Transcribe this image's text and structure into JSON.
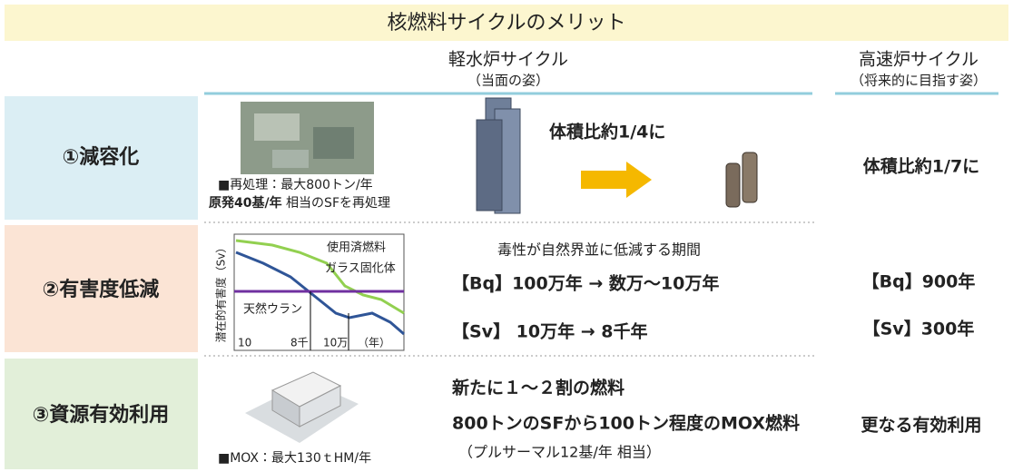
{
  "title": "核燃料サイクルのメリット",
  "columns": [
    {
      "title": "軽水炉サイクル",
      "subtitle": "（当面の姿）"
    },
    {
      "title": "高速炉サイクル",
      "subtitle": "（将来的に目指す姿）"
    }
  ],
  "rows": [
    {
      "label": "①減容化",
      "notes": [
        "■再処理：最大800トン/年",
        [
          "原発40基/年",
          " 相当のSFを再処理"
        ]
      ],
      "light_water": [
        "体積比約1/4に"
      ],
      "fast_reactor": [
        "体積比約1/7に"
      ]
    },
    {
      "label": "②有害度低減",
      "chart": {
        "y_label": "潜在的有害度（Sv）",
        "series_labels": [
          "使用済燃料",
          "ガラス固化体",
          "天然ウラン"
        ],
        "x_labels": [
          "10",
          "8千",
          "10万",
          "（年）"
        ]
      },
      "light_water": [
        "毒性が自然界並に低減する期間",
        "【Bq】100万年 → 数万～10万年",
        "【Sv】 10万年 → 8千年"
      ],
      "fast_reactor": [
        "【Bq】900年",
        "【Sv】300年"
      ]
    },
    {
      "label": "③資源有効利用",
      "notes": [
        "■MOX：最大130ｔHM/年"
      ],
      "light_water": [
        "新たに１～２割の燃料",
        "800トンのSFから100トン程度のMOX燃料",
        "（プルサーマル12基/年 相当）"
      ],
      "fast_reactor": [
        "更なる有効利用"
      ]
    }
  ]
}
